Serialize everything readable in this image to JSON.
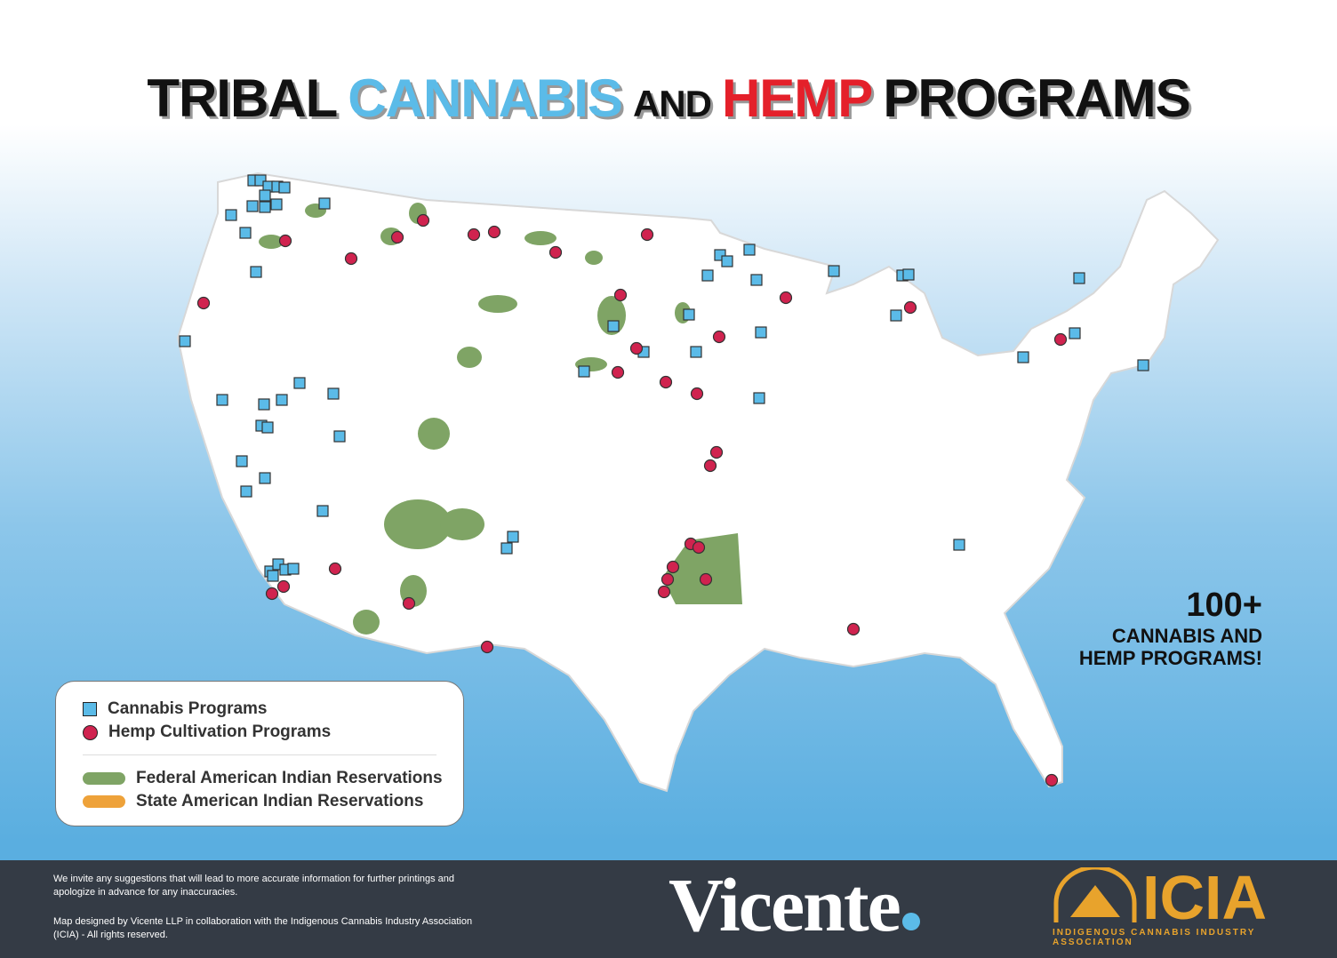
{
  "header": {
    "title": [
      "TRIBAL",
      "CANNABIS",
      "AND",
      "HEMP",
      "PROGRAMS"
    ]
  },
  "legend": {
    "items": [
      "Cannabis Programs",
      "Hemp Cultivation Programs",
      "Federal American Indian Reservations",
      "State American Indian Reservations"
    ]
  },
  "callout": {
    "count": "100+",
    "lines": [
      "CANNABIS AND",
      "HEMP PROGRAMS!"
    ]
  },
  "footer": {
    "notes": [
      "We invite any suggestions that will lead to more accurate information for further printings and apologize in advance for any inaccuracies.",
      "Map designed by Vicente LLP in collaboration with the Indigenous Cannabis Industry Association (ICIA) - All rights reserved."
    ],
    "brand": "Vicente",
    "logo": "ICIA",
    "logo_subtitle": "Indigenous Cannabis Industry Association"
  }
}
